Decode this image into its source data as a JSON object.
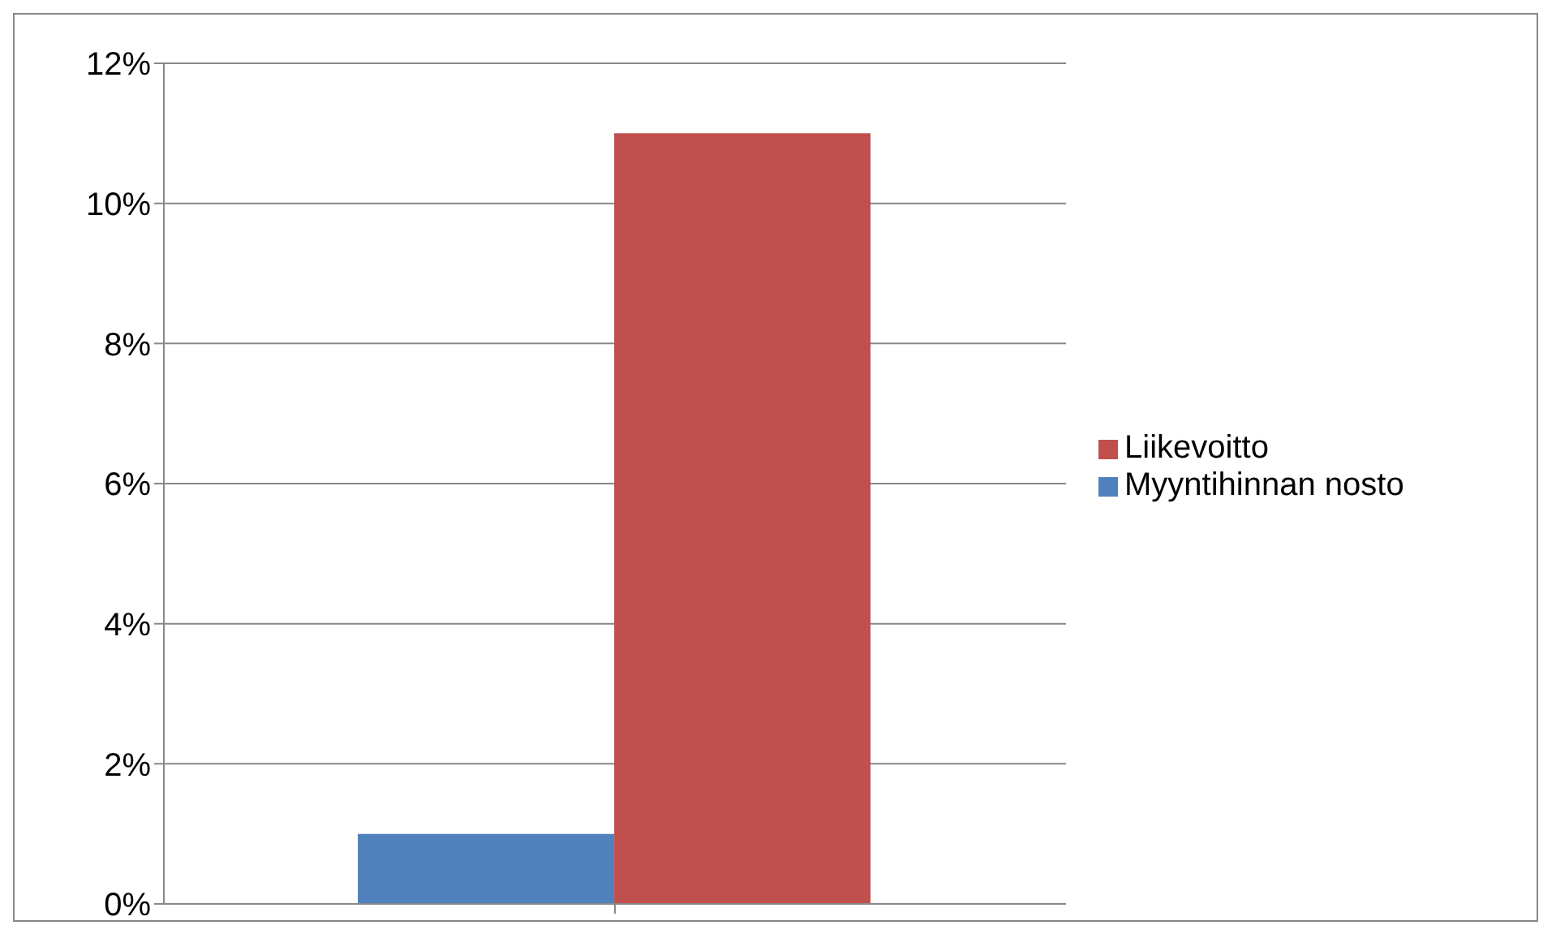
{
  "chart_data": {
    "type": "bar",
    "categories": [
      null
    ],
    "series": [
      {
        "name": "Myyntihinnan nosto",
        "color": "#4f81bd",
        "values": [
          1
        ]
      },
      {
        "name": "Liikevoitto",
        "color": "#c0504d",
        "values": [
          11
        ]
      }
    ],
    "ylim": [
      0,
      12
    ],
    "yticks": [
      {
        "value": 0,
        "label": "0%"
      },
      {
        "value": 2,
        "label": "2%"
      },
      {
        "value": 4,
        "label": "4%"
      },
      {
        "value": 6,
        "label": "6%"
      },
      {
        "value": 8,
        "label": "8%"
      },
      {
        "value": 10,
        "label": "10%"
      },
      {
        "value": 12,
        "label": "12%"
      }
    ],
    "grid": "y",
    "legend": "right"
  }
}
